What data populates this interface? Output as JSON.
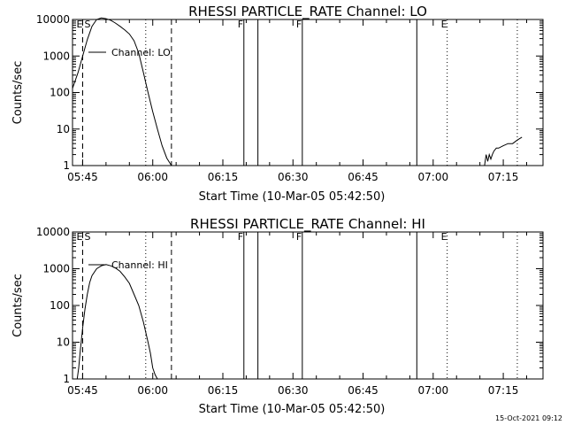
{
  "chart_data": [
    {
      "type": "line",
      "title": "RHESSI PARTICLE_RATE Channel: LO",
      "xlabel": "Start Time (10-Mar-05 05:42:50)",
      "ylabel": "Counts/sec",
      "yscale": "log",
      "ylim": [
        1,
        10000
      ],
      "xlim": [
        "05:42:50",
        "07:23:30"
      ],
      "xticks": [
        "05:45",
        "06:00",
        "06:15",
        "06:30",
        "06:45",
        "07:00",
        "07:15"
      ],
      "yticks": [
        "1",
        "10",
        "100",
        "1000",
        "10000"
      ],
      "grid": false,
      "legend": "top-left",
      "series": [
        {
          "name": "Channel: LO",
          "x": [
            "05:42:50",
            "05:44:00",
            "05:45:00",
            "05:46:00",
            "05:47:00",
            "05:48:00",
            "05:49:00",
            "05:50:00",
            "05:51:00",
            "05:52:00",
            "05:53:00",
            "05:54:00",
            "05:55:00",
            "05:56:00",
            "05:57:00",
            "05:58:00",
            "05:59:00",
            "06:00:00",
            "06:01:00",
            "06:02:00",
            "06:03:00",
            "06:04:00",
            "06:04:30",
            "07:10:00",
            "07:10:10",
            "07:11:00",
            "07:11:20",
            "07:11:40",
            "07:12:00",
            "07:12:20",
            "07:12:40",
            "07:13:00",
            "07:13:30",
            "07:14:00",
            "07:15:00",
            "07:16:00",
            "07:17:00",
            "07:18:00",
            "07:19:00"
          ],
          "y": [
            130,
            350,
            1000,
            2800,
            6500,
            10000,
            11000,
            10500,
            9500,
            8000,
            6500,
            5200,
            4000,
            2600,
            1200,
            350,
            100,
            30,
            10,
            3.5,
            1.6,
            1.0,
            1.0,
            null,
            1,
            1,
            2,
            1.3,
            2,
            1.5,
            2,
            2.5,
            3,
            3,
            3.5,
            4,
            4,
            5,
            6
          ]
        }
      ],
      "annotations": [
        {
          "label": "E",
          "x": "05:45:00",
          "style": "dashed"
        },
        {
          "label": "S",
          "x": "05:45:00",
          "style": "dashed"
        },
        {
          "label": "",
          "x": "05:58:30",
          "style": "dotted"
        },
        {
          "label": "",
          "x": "06:04:00",
          "style": "dashed"
        },
        {
          "label": "F",
          "x": "06:19:30",
          "style": "solid"
        },
        {
          "label": "",
          "x": "06:22:30",
          "style": "solid"
        },
        {
          "label": "F",
          "x": "06:32:00",
          "style": "solid"
        },
        {
          "label": "",
          "x": "06:56:30",
          "style": "solid"
        },
        {
          "label": "E",
          "x": "07:03:00",
          "style": "dotted"
        },
        {
          "label": "",
          "x": "07:18:00",
          "style": "dotted"
        }
      ]
    },
    {
      "type": "line",
      "title": "RHESSI PARTICLE_RATE Channel: HI",
      "xlabel": "Start Time (10-Mar-05 05:42:50)",
      "ylabel": "Counts/sec",
      "yscale": "log",
      "ylim": [
        1,
        10000
      ],
      "xlim": [
        "05:42:50",
        "07:23:30"
      ],
      "xticks": [
        "05:45",
        "06:00",
        "06:15",
        "06:30",
        "06:45",
        "07:00",
        "07:15"
      ],
      "yticks": [
        "1",
        "10",
        "100",
        "1000",
        "10000"
      ],
      "grid": false,
      "legend": "top-left",
      "series": [
        {
          "name": "Channel: HI",
          "x": [
            "05:43:50",
            "05:44:10",
            "05:44:30",
            "05:45:00",
            "05:45:30",
            "05:46:00",
            "05:46:30",
            "05:47:00",
            "05:48:00",
            "05:49:00",
            "05:50:00",
            "05:51:00",
            "05:52:00",
            "05:53:00",
            "05:54:00",
            "05:55:00",
            "05:56:00",
            "05:57:00",
            "05:58:00",
            "05:59:00",
            "05:59:30",
            "06:00:00",
            "06:00:30",
            "06:01:00"
          ],
          "y": [
            1,
            2,
            6,
            25,
            80,
            200,
            420,
            650,
            1000,
            1200,
            1300,
            1200,
            1050,
            850,
            600,
            400,
            200,
            100,
            35,
            10,
            5,
            2,
            1.3,
            1
          ]
        }
      ],
      "annotations": [
        {
          "label": "E",
          "x": "05:45:00",
          "style": "dashed"
        },
        {
          "label": "S",
          "x": "05:45:00",
          "style": "dashed"
        },
        {
          "label": "",
          "x": "05:58:30",
          "style": "dotted"
        },
        {
          "label": "",
          "x": "06:04:00",
          "style": "dashed"
        },
        {
          "label": "F",
          "x": "06:19:30",
          "style": "solid"
        },
        {
          "label": "",
          "x": "06:22:30",
          "style": "solid"
        },
        {
          "label": "F",
          "x": "06:32:00",
          "style": "solid"
        },
        {
          "label": "",
          "x": "06:56:30",
          "style": "solid"
        },
        {
          "label": "E",
          "x": "07:03:00",
          "style": "dotted"
        },
        {
          "label": "",
          "x": "07:18:00",
          "style": "dotted"
        }
      ]
    }
  ],
  "footer": {
    "timestamp": "15-Oct-2021 09:12"
  }
}
